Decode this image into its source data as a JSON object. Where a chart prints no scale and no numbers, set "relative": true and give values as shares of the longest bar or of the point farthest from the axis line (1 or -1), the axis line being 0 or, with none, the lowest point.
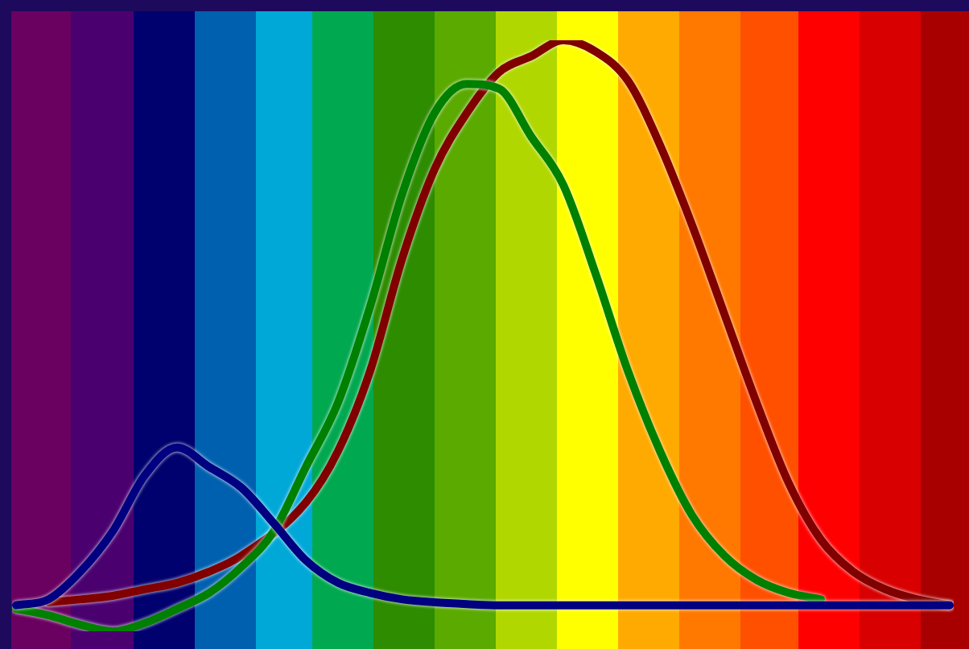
{
  "chart_data": {
    "type": "line",
    "relative": true,
    "marker": "none",
    "line_style": "solid",
    "grid": false,
    "legend": false,
    "categories": [
      null,
      null,
      null,
      null,
      null,
      null,
      null,
      null,
      null,
      null,
      null,
      null,
      null,
      null,
      null,
      null,
      null,
      null,
      null,
      null,
      null,
      null,
      null,
      null,
      null,
      null,
      null,
      null,
      null,
      null
    ],
    "series": [
      {
        "color": "#000080",
        "values": [
          0.044,
          0.054,
          0.101,
          0.169,
          0.264,
          0.311,
          0.278,
          0.243,
          0.183,
          0.12,
          0.082,
          0.065,
          0.054,
          0.049,
          0.046,
          0.044,
          0.044,
          0.044,
          0.044,
          0.044,
          0.044,
          0.044,
          0.044,
          0.044,
          0.044,
          0.044,
          0.044,
          0.044,
          0.044,
          0.044
        ]
      },
      {
        "color": "#008000",
        "values": [
          0.038,
          0.027,
          0.011,
          0,
          0.014,
          0.038,
          0.065,
          0.109,
          0.169,
          0.278,
          0.387,
          0.55,
          0.741,
          0.877,
          0.926,
          0.918,
          0.837,
          0.755,
          0.605,
          0.441,
          0.305,
          0.196,
          0.128,
          0.087,
          0.065,
          0.054,
          null,
          null,
          null,
          null
        ]
      },
      {
        "color": "#800000",
        "values": [
          null,
          0.049,
          0.054,
          0.06,
          0.071,
          0.082,
          0.101,
          0.128,
          null,
          0.218,
          0.305,
          0.441,
          0.632,
          0.782,
          0.877,
          0.946,
          0.973,
          1,
          0.981,
          0.932,
          0.823,
          0.687,
          0.537,
          0.387,
          0.251,
          0.155,
          0.101,
          0.071,
          0.054,
          0.044
        ]
      }
    ]
  }
}
